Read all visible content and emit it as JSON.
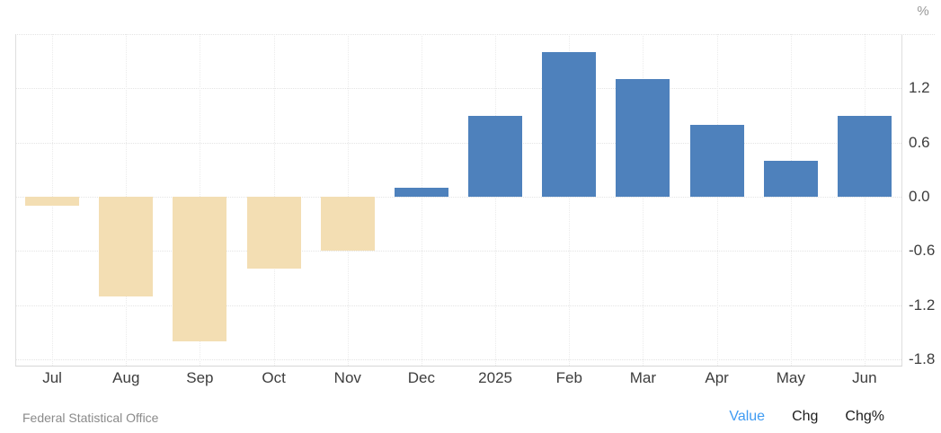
{
  "header": {
    "unit_label": "%"
  },
  "footer": {
    "source": "Federal Statistical Office",
    "toggles": [
      {
        "label": "Value",
        "active": true
      },
      {
        "label": "Chg",
        "active": false
      },
      {
        "label": "Chg%",
        "active": false
      }
    ]
  },
  "colors": {
    "positive_bar": "#4e81bc",
    "negative_bar": "#f3deb3",
    "grid": "#e4e4e4",
    "axis_border": "#dedede",
    "tick_label": "#3d3d3d",
    "unit_label": "#9a9a9a",
    "source_text": "#8a8a8a",
    "toggle_active": "#3f9bf2",
    "toggle_inactive": "#1c1c1c"
  },
  "chart_data": {
    "type": "bar",
    "categories": [
      "Jul",
      "Aug",
      "Sep",
      "Oct",
      "Nov",
      "Dec",
      "2025",
      "Feb",
      "Mar",
      "Apr",
      "May",
      "Jun"
    ],
    "values": [
      -0.1,
      -1.1,
      -1.6,
      -0.8,
      -0.6,
      0.1,
      0.9,
      1.6,
      1.3,
      0.8,
      0.4,
      0.9
    ],
    "title": "",
    "xlabel": "",
    "ylabel": "%",
    "ylim": [
      -1.87,
      1.8
    ],
    "gridline_values": [
      1.8,
      1.2,
      0.6,
      0.0,
      -0.6,
      -1.2,
      -1.8
    ],
    "ytick_labels": [
      "1.2",
      "0.6",
      "0.0",
      "-0.6",
      "-1.2",
      "-1.8"
    ],
    "ytick_values": [
      1.2,
      0.6,
      0.0,
      -0.6,
      -1.2,
      -1.8
    ],
    "legend_position": "none",
    "grid": "dotted",
    "bar_color_positive": "#4e81bc",
    "bar_color_negative": "#f3deb3"
  }
}
